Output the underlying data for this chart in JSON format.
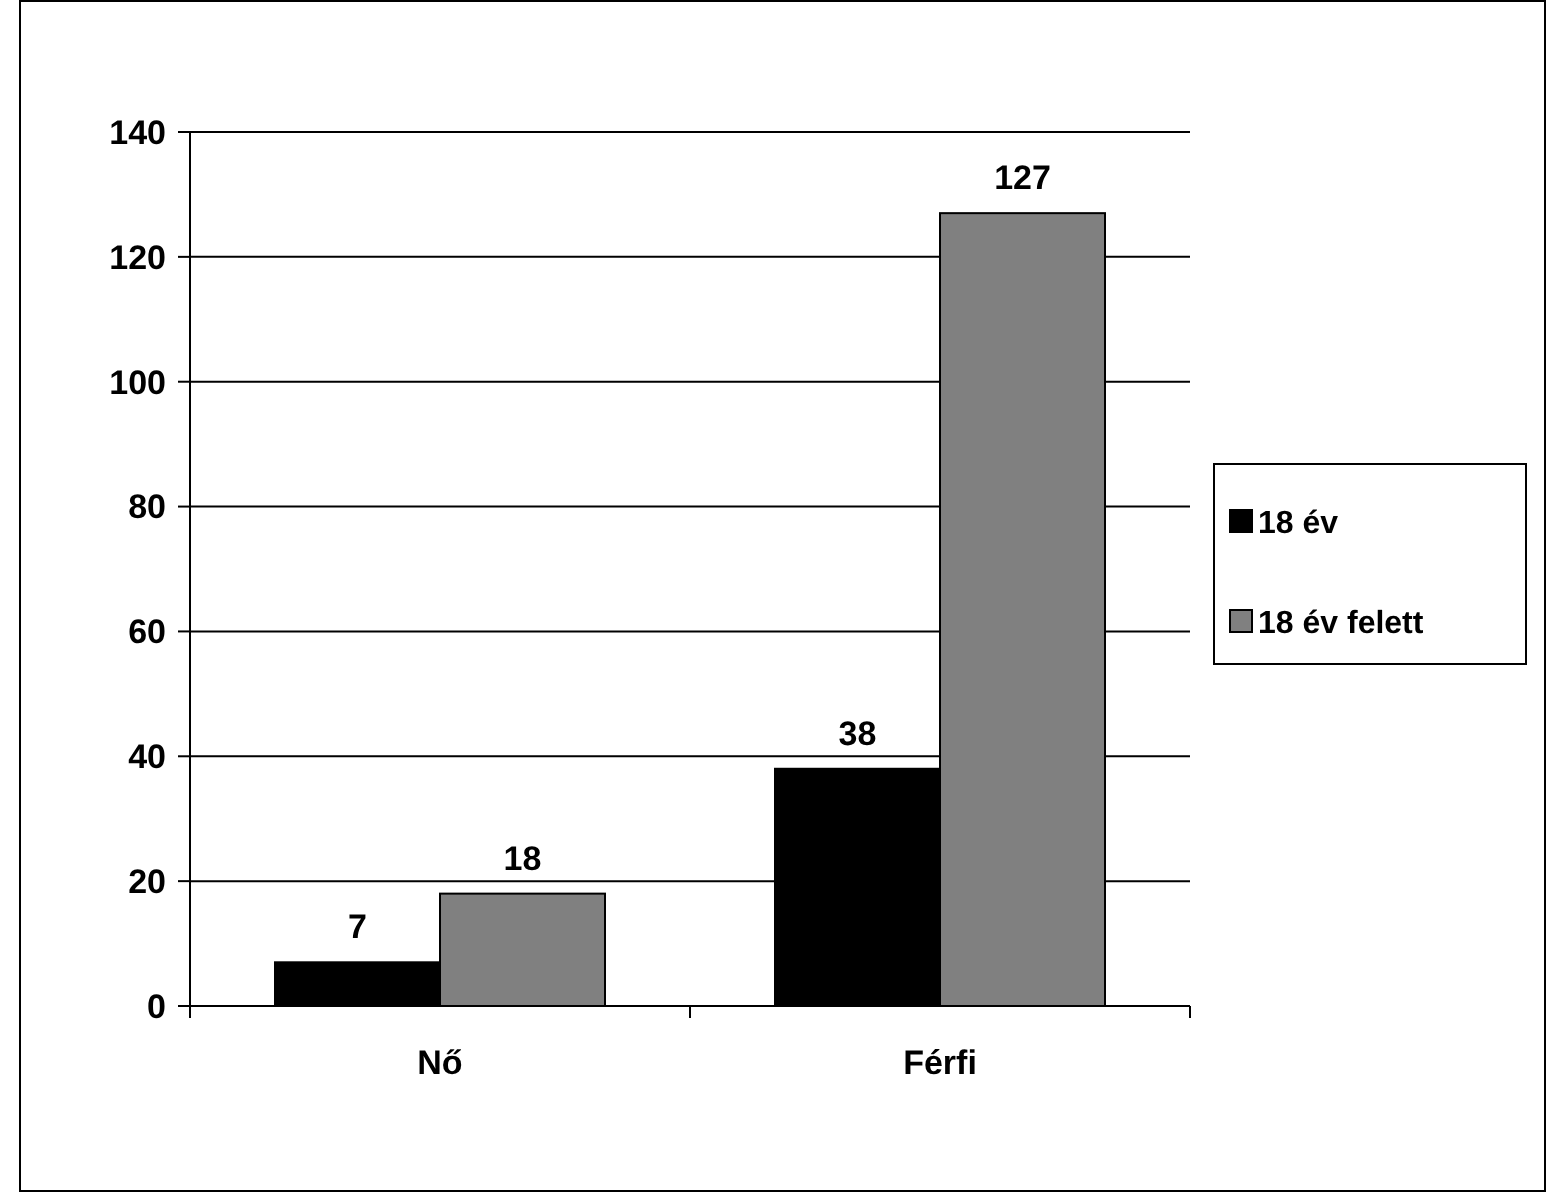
{
  "chart_data": {
    "type": "bar",
    "categories": [
      "Nő",
      "Férfi"
    ],
    "series": [
      {
        "name": "18 év",
        "color": "#000000",
        "values": [
          7,
          38
        ]
      },
      {
        "name": "18 év felett",
        "color": "#808080",
        "values": [
          18,
          127
        ]
      }
    ],
    "ylim": [
      0,
      140
    ],
    "yticks": [
      0,
      20,
      40,
      60,
      80,
      100,
      120,
      140
    ],
    "grid": "y",
    "legend": "right",
    "data_labels": true
  }
}
